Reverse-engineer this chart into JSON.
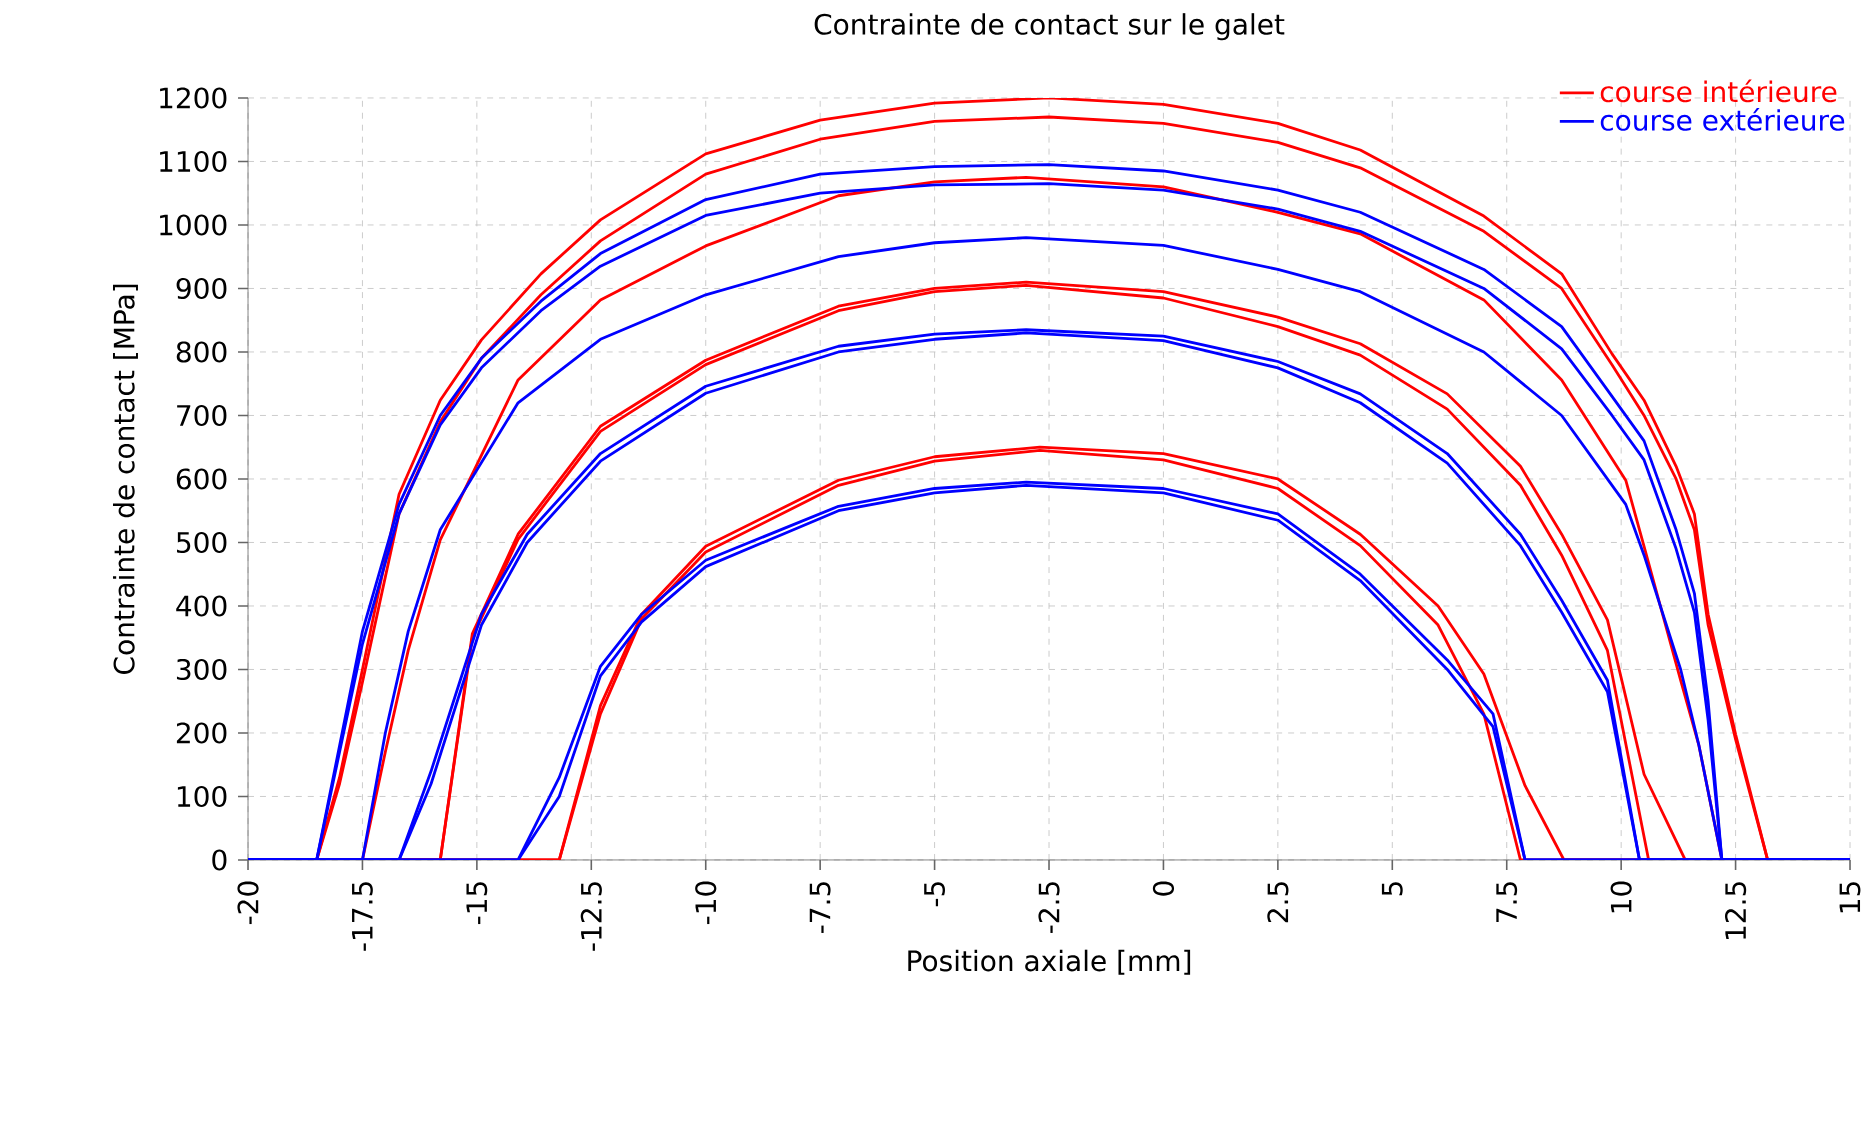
{
  "chart_data": {
    "type": "line",
    "title": "Contrainte de contact sur le galet",
    "xlabel": "Position axiale [mm]",
    "ylabel": "Contrainte de contact [MPa]",
    "xlim": [
      -20,
      15
    ],
    "xticks": [
      -20,
      -17.5,
      -15,
      -12.5,
      -10,
      -7.5,
      -5,
      -2.5,
      0,
      2.5,
      5,
      7.5,
      10,
      12.5,
      15
    ],
    "ylim": [
      0,
      1200
    ],
    "yticks": [
      0,
      100,
      200,
      300,
      400,
      500,
      600,
      700,
      800,
      900,
      1000,
      1100,
      1200
    ],
    "grid": true,
    "legend": "top right",
    "marker": "none",
    "line_style": "solid",
    "series": [
      {
        "name": "course intérieure",
        "color": "#ff0000",
        "x": [
          -20,
          -18.5,
          -18,
          -17.5,
          -16.7,
          -15.8,
          -14.9,
          -13.6,
          -12.3,
          -10,
          -7.5,
          -5,
          -2.5,
          0,
          2.5,
          4.3,
          7,
          8.7,
          9.8,
          10.5,
          11.2,
          11.6,
          11.9,
          12.5,
          13.2,
          15
        ],
        "values": [
          0,
          0,
          130,
          300,
          576,
          724,
          819,
          923,
          1008,
          1112,
          1165,
          1192,
          1200,
          1190,
          1160,
          1118,
          1014,
          923,
          797,
          724,
          620,
          545,
          387,
          198,
          0,
          0
        ]
      },
      {
        "color": "#ff0000",
        "x": [
          -20,
          -18.5,
          -18,
          -17.5,
          -16.7,
          -15.8,
          -14.9,
          -13.6,
          -12.3,
          -10,
          -7.5,
          -5,
          -2.5,
          0,
          2.5,
          4.3,
          7,
          8.7,
          9.8,
          10.5,
          11.2,
          11.6,
          11.9,
          12.5,
          13.2,
          15
        ],
        "values": [
          0,
          0,
          120,
          280,
          545,
          690,
          790,
          890,
          975,
          1080,
          1135,
          1163,
          1170,
          1160,
          1130,
          1090,
          990,
          900,
          780,
          700,
          600,
          520,
          370,
          190,
          0,
          0
        ]
      },
      {
        "color": "#ff0000",
        "x": [
          -20,
          -17.5,
          -17,
          -16.5,
          -15.8,
          -14.1,
          -12.3,
          -10,
          -7.1,
          -5,
          -3,
          0,
          2.5,
          4.3,
          7,
          8.7,
          10.1,
          10.5,
          11.3,
          11.7,
          12.2,
          15
        ],
        "values": [
          0,
          0,
          170,
          330,
          504,
          756,
          882,
          967,
          1046,
          1068,
          1075,
          1060,
          1020,
          986,
          882,
          756,
          598,
          494,
          283,
          180,
          0,
          0
        ]
      },
      {
        "color": "#ff0000",
        "x": [
          -20,
          -15.8,
          -15.1,
          -14.1,
          -12.3,
          -10,
          -7.1,
          -5,
          -3,
          0,
          2.5,
          4.3,
          6.2,
          7.8,
          8.7,
          9.7,
          10.5,
          11.4,
          15
        ],
        "values": [
          0,
          0,
          356,
          513,
          683,
          787,
          872,
          900,
          910,
          895,
          855,
          813,
          734,
          620,
          513,
          378,
          135,
          0,
          0
        ]
      },
      {
        "color": "#ff0000",
        "x": [
          -20,
          -15.8,
          -15.1,
          -14.1,
          -12.3,
          -10,
          -7.1,
          -5,
          -3,
          0,
          2.5,
          4.3,
          6.2,
          7.8,
          8.7,
          9.7,
          10.6,
          15
        ],
        "values": [
          0,
          0,
          350,
          505,
          675,
          780,
          865,
          895,
          905,
          885,
          840,
          795,
          710,
          590,
          480,
          330,
          0,
          0
        ]
      },
      {
        "color": "#ff0000",
        "x": [
          -20,
          -13.2,
          -12.3,
          -11.4,
          -10,
          -7.1,
          -5,
          -2.7,
          0,
          2.5,
          4.3,
          6,
          7,
          7.9,
          8.75,
          15
        ],
        "values": [
          0,
          0,
          243,
          387,
          494,
          598,
          635,
          650,
          640,
          600,
          513,
          400,
          293,
          117,
          0,
          0
        ]
      },
      {
        "color": "#ff0000",
        "x": [
          -20,
          -13.2,
          -12.3,
          -11.4,
          -10,
          -7.1,
          -5,
          -2.7,
          0,
          2.5,
          4.3,
          6,
          7,
          7.8,
          15
        ],
        "values": [
          0,
          0,
          230,
          380,
          485,
          590,
          628,
          645,
          630,
          585,
          495,
          370,
          230,
          0,
          0
        ]
      },
      {
        "name": "course extérieure",
        "color": "#0000ff",
        "x": [
          -20,
          -18.5,
          -18,
          -17.5,
          -16.7,
          -15.8,
          -14.9,
          -13.6,
          -12.3,
          -10,
          -7.5,
          -5,
          -2.5,
          0,
          2.5,
          4.3,
          7,
          8.7,
          9.8,
          10.5,
          11.2,
          11.6,
          11.9,
          12.2,
          15
        ],
        "values": [
          0,
          0,
          180,
          360,
          560,
          700,
          790,
          880,
          955,
          1040,
          1080,
          1092,
          1095,
          1085,
          1055,
          1020,
          930,
          840,
          730,
          660,
          520,
          420,
          250,
          0,
          0
        ]
      },
      {
        "color": "#0000ff",
        "x": [
          -20,
          -18.5,
          -18,
          -17.5,
          -16.7,
          -15.8,
          -14.9,
          -13.6,
          -12.3,
          -10,
          -7.5,
          -5,
          -2.5,
          0,
          2.5,
          4.3,
          7,
          8.7,
          9.8,
          10.5,
          11.2,
          11.6,
          11.9,
          12.2,
          15
        ],
        "values": [
          0,
          0,
          170,
          340,
          545,
          685,
          775,
          865,
          935,
          1015,
          1050,
          1063,
          1065,
          1055,
          1025,
          990,
          900,
          805,
          700,
          630,
          490,
          390,
          220,
          0,
          0
        ]
      },
      {
        "color": "#0000ff",
        "x": [
          -20,
          -17.5,
          -17,
          -16.5,
          -15.8,
          -14.1,
          -12.3,
          -10,
          -7.1,
          -5,
          -3,
          0,
          2.5,
          4.3,
          7,
          8.7,
          10.1,
          10.5,
          11.3,
          11.7,
          12.2,
          15
        ],
        "values": [
          0,
          0,
          200,
          360,
          520,
          720,
          820,
          890,
          950,
          972,
          980,
          968,
          930,
          895,
          800,
          700,
          560,
          480,
          300,
          180,
          0,
          0
        ]
      },
      {
        "color": "#0000ff",
        "x": [
          -20,
          -16.7,
          -16,
          -14.9,
          -13.9,
          -12.3,
          -10,
          -7.1,
          -5,
          -3,
          0,
          2.5,
          4.3,
          6.2,
          7.8,
          8.7,
          9.7,
          10.4,
          15
        ],
        "values": [
          0,
          0,
          140,
          387,
          513,
          640,
          746,
          809,
          828,
          835,
          825,
          785,
          734,
          640,
          513,
          409,
          283,
          0,
          0
        ]
      },
      {
        "color": "#0000ff",
        "x": [
          -20,
          -16.7,
          -16,
          -14.9,
          -13.9,
          -12.3,
          -10,
          -7.1,
          -5,
          -3,
          0,
          2.5,
          4.3,
          6.2,
          7.8,
          8.7,
          9.7,
          10.4,
          15
        ],
        "values": [
          0,
          0,
          120,
          370,
          500,
          628,
          735,
          800,
          820,
          830,
          818,
          775,
          720,
          625,
          495,
          390,
          265,
          0,
          0
        ]
      },
      {
        "color": "#0000ff",
        "x": [
          -20,
          -14.1,
          -13.2,
          -12.3,
          -11.4,
          -10,
          -7.1,
          -5,
          -3,
          0,
          2.5,
          4.3,
          6.2,
          7.2,
          7.9,
          15
        ],
        "values": [
          0,
          0,
          130,
          305,
          387,
          472,
          557,
          585,
          595,
          585,
          545,
          450,
          315,
          230,
          0,
          0
        ]
      },
      {
        "color": "#0000ff",
        "x": [
          -20,
          -14.1,
          -13.2,
          -12.3,
          -11.4,
          -10,
          -7.1,
          -5,
          -3,
          0,
          2.5,
          4.3,
          6.2,
          7.2,
          7.9,
          15
        ],
        "values": [
          0,
          0,
          100,
          290,
          375,
          462,
          550,
          578,
          590,
          578,
          535,
          440,
          300,
          210,
          0,
          0
        ]
      }
    ]
  }
}
